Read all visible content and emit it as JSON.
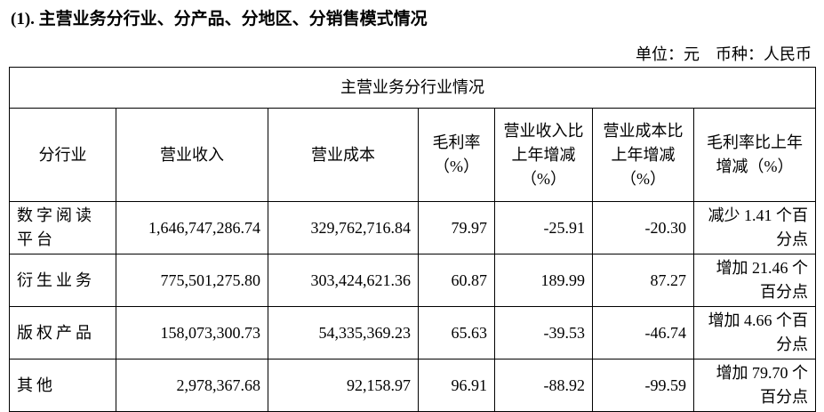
{
  "header": {
    "title": "(1). 主营业务分行业、分产品、分地区、分销售模式情况",
    "unit": "单位：元　币种：人民币"
  },
  "table": {
    "title": "主营业务分行业情况",
    "columns": [
      "分行业",
      "营业收入",
      "营业成本",
      "毛利率（%）",
      "营业收入比上年增减（%）",
      "营业成本比上年增减（%）",
      "毛利率比上年增减（%）"
    ],
    "rows": [
      [
        "数字阅读平台",
        "1,646,747,286.74",
        "329,762,716.84",
        "79.97",
        "-25.91",
        "-20.30",
        "减少 1.41 个百分点"
      ],
      [
        "衍生业务",
        "775,501,275.80",
        "303,424,621.36",
        "60.87",
        "189.99",
        "87.27",
        "增加 21.46 个百分点"
      ],
      [
        "版权产品",
        "158,073,300.73",
        "54,335,369.23",
        "65.63",
        "-39.53",
        "-46.74",
        "增加 4.66 个百分点"
      ],
      [
        "其他",
        "2,978,367.68",
        "92,158.97",
        "96.91",
        "-88.92",
        "-99.59",
        "增加 79.70 个百分点"
      ]
    ]
  }
}
